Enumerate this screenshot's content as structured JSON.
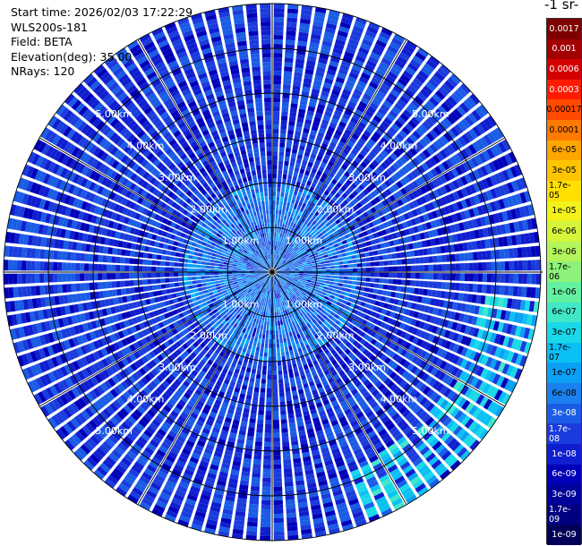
{
  "info": {
    "start_time": "Start time: 2026/02/03 17:22:29",
    "instrument": "WLS200s-181",
    "field": "Field: BETA",
    "elevation": "Elevation(deg): 35.00",
    "nrays": "NRays: 120"
  },
  "colorbar": {
    "title": "-1 sr-",
    "labels": [
      "0.0017",
      "0.001",
      "0.0006",
      "0.0003",
      "0.00017",
      "0.0001",
      "6e-05",
      "3e-05",
      "1.7e-05",
      "1e-05",
      "6e-06",
      "3e-06",
      "1.7e-06",
      "1e-06",
      "6e-07",
      "3e-07",
      "1.7e-07",
      "1e-07",
      "6e-08",
      "3e-08",
      "1.7e-08",
      "1e-08",
      "6e-09",
      "3e-09",
      "1.7e-09",
      "1e-09"
    ],
    "colors": [
      "#7f0000",
      "#a30000",
      "#d40000",
      "#ff1a00",
      "#ff4a00",
      "#ff7a00",
      "#ffa600",
      "#ffc400",
      "#ffe000",
      "#f2f21a",
      "#d4f53a",
      "#b3f55a",
      "#8cf27a",
      "#63f0a0",
      "#40e8c8",
      "#1ad8e8",
      "#0ac0f5",
      "#0aa0f5",
      "#1a80f0",
      "#1a5ce6",
      "#1a3cdc",
      "#0f1ecf",
      "#0000b8",
      "#00009a",
      "#000080",
      "#000058"
    ],
    "label_colors": [
      "#ffffff",
      "#ffffff",
      "#ffffff",
      "#ffffff",
      "#000000",
      "#000000",
      "#000000",
      "#000000",
      "#000000",
      "#000000",
      "#000000",
      "#000000",
      "#000000",
      "#000000",
      "#000000",
      "#000000",
      "#000000",
      "#000000",
      "#000000",
      "#ffffff",
      "#ffffff",
      "#ffffff",
      "#ffffff",
      "#ffffff",
      "#ffffff",
      "#ffffff"
    ]
  },
  "chart_data": {
    "type": "heatmap",
    "projection": "polar-ppi",
    "field": "BETA",
    "elevation_deg": 35.0,
    "n_rays": 120,
    "range_rings_km": [
      1.0,
      2.0,
      3.0,
      4.0,
      5.0
    ],
    "ring_labels": [
      "1.00km",
      "2.00km",
      "3.00km",
      "4.00km",
      "5.00km"
    ],
    "max_range_km": 6.0,
    "spoke_angles_deg": [
      0,
      30,
      60,
      90,
      120,
      150,
      180,
      210,
      240,
      270,
      300,
      330
    ],
    "color_scale": "log",
    "value_range": [
      1e-09,
      0.0017
    ],
    "typical_value": 2e-08,
    "near_field_value": 6e-08,
    "edge_enhancement_sector": "east/south-east",
    "edge_value": 3e-07
  }
}
